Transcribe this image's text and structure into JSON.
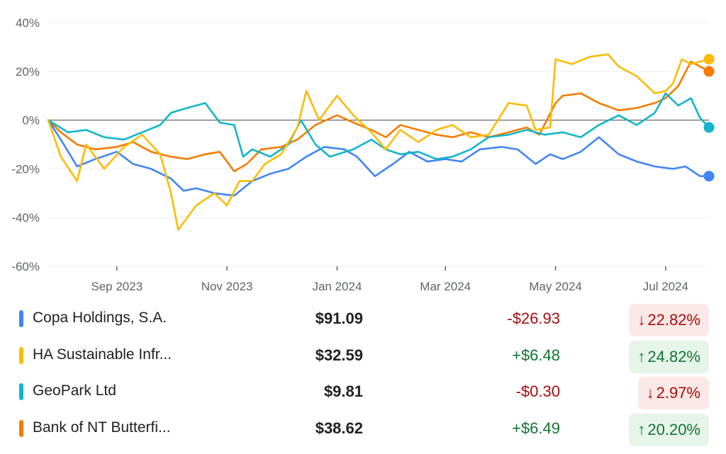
{
  "chart_data": {
    "type": "line",
    "ylim": [
      -60,
      40
    ],
    "y_ticks": [
      "40%",
      "20%",
      "0%",
      "-20%",
      "-40%",
      "-60%"
    ],
    "x_ticks": [
      "Sep 2023",
      "Nov 2023",
      "Jan 2024",
      "Mar 2024",
      "May 2024",
      "Jul 2024"
    ],
    "x_range": [
      "2023-07-25",
      "2024-07-25"
    ],
    "grid": true,
    "series": [
      {
        "name": "Copa Holdings, S.A.",
        "color": "#4285f4",
        "points": [
          [
            "2023-07-25",
            0
          ],
          [
            "2023-08-01",
            -8
          ],
          [
            "2023-08-10",
            -19
          ],
          [
            "2023-08-20",
            -16
          ],
          [
            "2023-09-01",
            -13
          ],
          [
            "2023-09-10",
            -18
          ],
          [
            "2023-09-20",
            -20
          ],
          [
            "2023-10-01",
            -24
          ],
          [
            "2023-10-08",
            -29
          ],
          [
            "2023-10-15",
            -28
          ],
          [
            "2023-10-25",
            -30
          ],
          [
            "2023-11-05",
            -31
          ],
          [
            "2023-11-15",
            -25
          ],
          [
            "2023-11-25",
            -22
          ],
          [
            "2023-12-05",
            -20
          ],
          [
            "2023-12-15",
            -15
          ],
          [
            "2023-12-25",
            -11
          ],
          [
            "2024-01-05",
            -12
          ],
          [
            "2024-01-12",
            -15
          ],
          [
            "2024-01-22",
            -23
          ],
          [
            "2024-02-01",
            -18
          ],
          [
            "2024-02-10",
            -13
          ],
          [
            "2024-02-20",
            -17
          ],
          [
            "2024-03-01",
            -16
          ],
          [
            "2024-03-10",
            -17
          ],
          [
            "2024-03-20",
            -12
          ],
          [
            "2024-04-01",
            -11
          ],
          [
            "2024-04-10",
            -12
          ],
          [
            "2024-04-20",
            -18
          ],
          [
            "2024-04-28",
            -14
          ],
          [
            "2024-05-05",
            -16
          ],
          [
            "2024-05-15",
            -13
          ],
          [
            "2024-05-25",
            -7
          ],
          [
            "2024-06-05",
            -14
          ],
          [
            "2024-06-15",
            -17
          ],
          [
            "2024-06-25",
            -19
          ],
          [
            "2024-07-05",
            -20
          ],
          [
            "2024-07-12",
            -19
          ],
          [
            "2024-07-20",
            -23
          ],
          [
            "2024-07-25",
            -23
          ]
        ]
      },
      {
        "name": "HA Sustainable Infr...",
        "color": "#fbbc04",
        "points": [
          [
            "2023-07-25",
            0
          ],
          [
            "2023-08-01",
            -15
          ],
          [
            "2023-08-10",
            -25
          ],
          [
            "2023-08-15",
            -10
          ],
          [
            "2023-08-25",
            -20
          ],
          [
            "2023-09-05",
            -11
          ],
          [
            "2023-09-15",
            -6
          ],
          [
            "2023-09-25",
            -14
          ],
          [
            "2023-10-01",
            -30
          ],
          [
            "2023-10-05",
            -45
          ],
          [
            "2023-10-15",
            -35
          ],
          [
            "2023-10-25",
            -30
          ],
          [
            "2023-11-01",
            -35
          ],
          [
            "2023-11-08",
            -25
          ],
          [
            "2023-11-15",
            -25
          ],
          [
            "2023-11-22",
            -18
          ],
          [
            "2023-12-01",
            -14
          ],
          [
            "2023-12-10",
            -3
          ],
          [
            "2023-12-15",
            12
          ],
          [
            "2023-12-22",
            0
          ],
          [
            "2024-01-01",
            10
          ],
          [
            "2024-01-10",
            2
          ],
          [
            "2024-01-20",
            -5
          ],
          [
            "2024-01-28",
            -12
          ],
          [
            "2024-02-05",
            -4
          ],
          [
            "2024-02-15",
            -9
          ],
          [
            "2024-02-25",
            -4
          ],
          [
            "2024-03-05",
            -2
          ],
          [
            "2024-03-15",
            -7
          ],
          [
            "2024-03-25",
            -6
          ],
          [
            "2024-04-05",
            7
          ],
          [
            "2024-04-15",
            6
          ],
          [
            "2024-04-20",
            -4
          ],
          [
            "2024-04-28",
            -3
          ],
          [
            "2024-05-01",
            25
          ],
          [
            "2024-05-10",
            23
          ],
          [
            "2024-05-20",
            26
          ],
          [
            "2024-05-30",
            27
          ],
          [
            "2024-06-05",
            22
          ],
          [
            "2024-06-15",
            18
          ],
          [
            "2024-06-25",
            11
          ],
          [
            "2024-07-01",
            12
          ],
          [
            "2024-07-05",
            15
          ],
          [
            "2024-07-10",
            25
          ],
          [
            "2024-07-15",
            23
          ],
          [
            "2024-07-25",
            25
          ]
        ]
      },
      {
        "name": "GeoPark Ltd",
        "color": "#12b5cb",
        "points": [
          [
            "2023-07-25",
            0
          ],
          [
            "2023-08-05",
            -5
          ],
          [
            "2023-08-15",
            -4
          ],
          [
            "2023-08-25",
            -7
          ],
          [
            "2023-09-05",
            -8
          ],
          [
            "2023-09-15",
            -5
          ],
          [
            "2023-09-25",
            -2
          ],
          [
            "2023-10-01",
            3
          ],
          [
            "2023-10-10",
            5
          ],
          [
            "2023-10-20",
            7
          ],
          [
            "2023-10-28",
            -1
          ],
          [
            "2023-11-05",
            -2
          ],
          [
            "2023-11-10",
            -15
          ],
          [
            "2023-11-15",
            -12
          ],
          [
            "2023-11-25",
            -15
          ],
          [
            "2023-12-05",
            -10
          ],
          [
            "2023-12-12",
            0
          ],
          [
            "2023-12-20",
            -10
          ],
          [
            "2023-12-28",
            -15
          ],
          [
            "2024-01-10",
            -12
          ],
          [
            "2024-01-20",
            -8
          ],
          [
            "2024-01-28",
            -12
          ],
          [
            "2024-02-05",
            -14
          ],
          [
            "2024-02-15",
            -13
          ],
          [
            "2024-02-25",
            -16
          ],
          [
            "2024-03-05",
            -15
          ],
          [
            "2024-03-15",
            -12
          ],
          [
            "2024-03-25",
            -7
          ],
          [
            "2024-04-05",
            -6
          ],
          [
            "2024-04-15",
            -4
          ],
          [
            "2024-04-25",
            -6
          ],
          [
            "2024-05-05",
            -5
          ],
          [
            "2024-05-15",
            -7
          ],
          [
            "2024-05-25",
            -2
          ],
          [
            "2024-06-05",
            2
          ],
          [
            "2024-06-15",
            -2
          ],
          [
            "2024-06-25",
            3
          ],
          [
            "2024-07-01",
            11
          ],
          [
            "2024-07-08",
            6
          ],
          [
            "2024-07-15",
            9
          ],
          [
            "2024-07-20",
            1
          ],
          [
            "2024-07-25",
            -3
          ]
        ]
      },
      {
        "name": "Bank of NT Butterfi...",
        "color": "#f57c00",
        "points": [
          [
            "2023-07-25",
            0
          ],
          [
            "2023-08-01",
            -5
          ],
          [
            "2023-08-10",
            -10
          ],
          [
            "2023-08-20",
            -12
          ],
          [
            "2023-09-01",
            -11
          ],
          [
            "2023-09-10",
            -9
          ],
          [
            "2023-09-20",
            -13
          ],
          [
            "2023-10-01",
            -15
          ],
          [
            "2023-10-10",
            -16
          ],
          [
            "2023-10-20",
            -14
          ],
          [
            "2023-10-28",
            -13
          ],
          [
            "2023-11-05",
            -21
          ],
          [
            "2023-11-12",
            -18
          ],
          [
            "2023-11-20",
            -12
          ],
          [
            "2023-12-01",
            -11
          ],
          [
            "2023-12-10",
            -8
          ],
          [
            "2023-12-20",
            -2
          ],
          [
            "2024-01-01",
            2
          ],
          [
            "2024-01-10",
            -1
          ],
          [
            "2024-01-20",
            -4
          ],
          [
            "2024-01-28",
            -7
          ],
          [
            "2024-02-05",
            -2
          ],
          [
            "2024-02-15",
            -4
          ],
          [
            "2024-02-25",
            -6
          ],
          [
            "2024-03-05",
            -7
          ],
          [
            "2024-03-15",
            -5
          ],
          [
            "2024-03-25",
            -7
          ],
          [
            "2024-04-05",
            -5
          ],
          [
            "2024-04-15",
            -3
          ],
          [
            "2024-04-22",
            -6
          ],
          [
            "2024-05-01",
            7
          ],
          [
            "2024-05-05",
            10
          ],
          [
            "2024-05-15",
            11
          ],
          [
            "2024-05-25",
            7
          ],
          [
            "2024-06-05",
            4
          ],
          [
            "2024-06-15",
            5
          ],
          [
            "2024-06-25",
            7
          ],
          [
            "2024-07-01",
            9
          ],
          [
            "2024-07-08",
            14
          ],
          [
            "2024-07-15",
            24
          ],
          [
            "2024-07-20",
            22
          ],
          [
            "2024-07-25",
            20
          ]
        ]
      }
    ]
  },
  "legend": [
    {
      "name": "Copa Holdings, S.A.",
      "color": "#4285f4",
      "price": "$91.09",
      "change": "-$26.93",
      "pct": "22.82%",
      "direction": "down",
      "arrow": "↓"
    },
    {
      "name": "HA Sustainable Infr...",
      "color": "#fbbc04",
      "price": "$32.59",
      "change": "+$6.48",
      "pct": "24.82%",
      "direction": "up",
      "arrow": "↑"
    },
    {
      "name": "GeoPark Ltd",
      "color": "#12b5cb",
      "price": "$9.81",
      "change": "-$0.30",
      "pct": "2.97%",
      "direction": "down",
      "arrow": "↓"
    },
    {
      "name": "Bank of NT Butterfi...",
      "color": "#f57c00",
      "price": "$38.62",
      "change": "+$6.49",
      "pct": "20.20%",
      "direction": "up",
      "arrow": "↑"
    }
  ]
}
